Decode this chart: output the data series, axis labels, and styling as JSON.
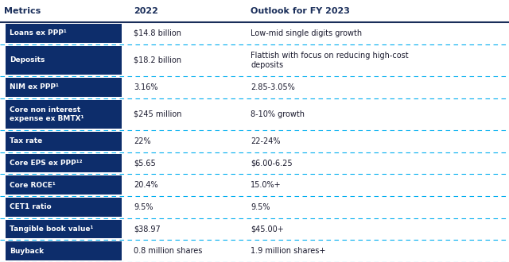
{
  "title_col1": "Metrics",
  "title_col2": "2022",
  "title_col3": "Outlook for FY 2023",
  "header_text_color": "#1a2e5a",
  "row_label_bg": "#0d2d6b",
  "row_label_text_color": "#ffffff",
  "separator_color": "#00aeef",
  "header_border_color": "#1a2e5a",
  "body_text_color": "#1a1a2e",
  "rows": [
    {
      "metric": "Loans ex PPP¹",
      "val2022": "$14.8 billion",
      "outlook": "Low-mid single digits growth",
      "tall": false
    },
    {
      "metric": "Deposits",
      "val2022": "$18.2 billion",
      "outlook": "Flattish with focus on reducing high-cost\ndeposits",
      "tall": true
    },
    {
      "metric": "NIM ex PPP¹",
      "val2022": "3.16%",
      "outlook": "2.85-3.05%",
      "tall": false
    },
    {
      "metric": "Core non interest\nexpense ex BMTX¹",
      "val2022": "$245 million",
      "outlook": "8-10% growth",
      "tall": true
    },
    {
      "metric": "Tax rate",
      "val2022": "22%",
      "outlook": "22-24%",
      "tall": false
    },
    {
      "metric": "Core EPS ex PPP¹²",
      "val2022": "$5.65",
      "outlook": "$6.00-6.25",
      "tall": false
    },
    {
      "metric": "Core ROCE¹",
      "val2022": "20.4%",
      "outlook": "15.0%+",
      "tall": false
    },
    {
      "metric": "CET1 ratio",
      "val2022": "9.5%",
      "outlook": "9.5%",
      "tall": false
    },
    {
      "metric": "Tangible book value¹",
      "val2022": "$38.97",
      "outlook": "$45.00+",
      "tall": false
    },
    {
      "metric": "Buyback",
      "val2022": "0.8 million shares",
      "outlook": "1.9 million shares+",
      "tall": false
    }
  ],
  "c1x": 0.005,
  "c1w": 0.245,
  "c2x": 0.265,
  "c3x": 0.49,
  "fig_width": 6.4,
  "fig_height": 3.3,
  "dpi": 100
}
